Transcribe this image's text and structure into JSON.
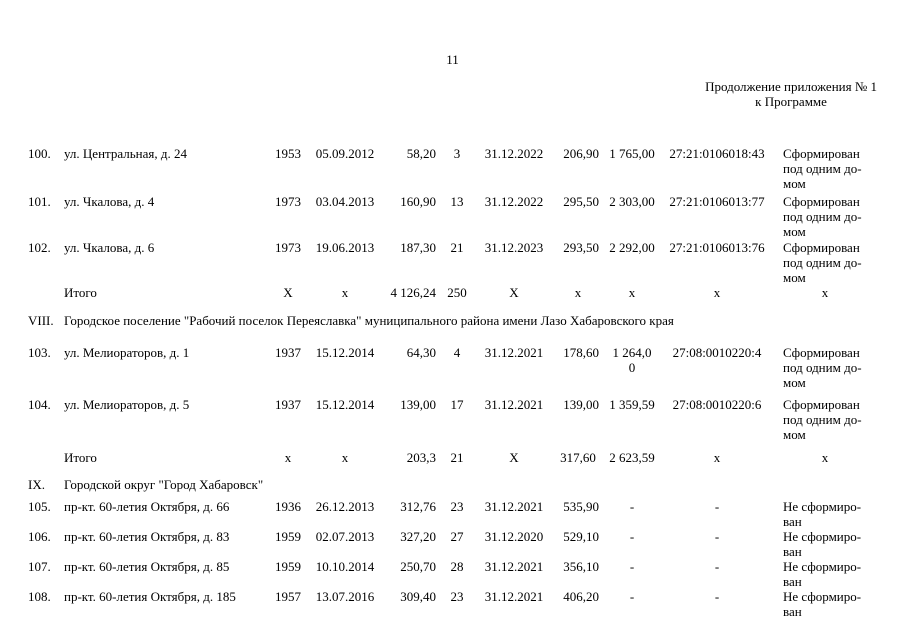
{
  "page": {
    "number": "11",
    "appendix_line1": "Продолжение приложения № 1",
    "appendix_line2": "к Программе"
  },
  "table": {
    "columns": [
      "num",
      "address",
      "year",
      "date",
      "area",
      "count",
      "plan_date",
      "val1",
      "val2",
      "cadastral",
      "status"
    ],
    "rows": [
      {
        "kind": "data",
        "num": "100.",
        "address": "ул. Центральная, д. 24",
        "year": "1953",
        "date": "05.09.2012",
        "area": "58,20",
        "count": "3",
        "plan_date": "31.12.2022",
        "val1": "206,90",
        "val2": "1 765,00",
        "cadastral": "27:21:0106018:43",
        "status": "Сформирован\nпод одним до-\nмом"
      },
      {
        "kind": "data",
        "num": "101.",
        "address": "ул. Чкалова, д. 4",
        "year": "1973",
        "date": "03.04.2013",
        "area": "160,90",
        "count": "13",
        "plan_date": "31.12.2022",
        "val1": "295,50",
        "val2": "2 303,00",
        "cadastral": "27:21:0106013:77",
        "status": "Сформирован\nпод одним до-\nмом"
      },
      {
        "kind": "data",
        "num": "102.",
        "address": "ул. Чкалова, д. 6",
        "year": "1973",
        "date": "19.06.2013",
        "area": "187,30",
        "count": "21",
        "plan_date": "31.12.2023",
        "val1": "293,50",
        "val2": "2 292,00",
        "cadastral": "27:21:0106013:76",
        "status": "Сформирован\nпод одним до-\nмом"
      },
      {
        "kind": "total",
        "num": "",
        "address": "Итого",
        "year": "X",
        "date": "x",
        "area": "4 126,24",
        "count": "250",
        "plan_date": "X",
        "val1": "x",
        "val2": "x",
        "cadastral": "x",
        "status": "x"
      },
      {
        "kind": "section",
        "num": "VIII.",
        "text": "Городское поселение \"Рабочий поселок Переяславка\" муниципального района имени Лазо Хабаровского края"
      },
      {
        "kind": "data",
        "num": "103.",
        "address": "ул. Мелиораторов, д. 1",
        "year": "1937",
        "date": "15.12.2014",
        "area": "64,30",
        "count": "4",
        "plan_date": "31.12.2021",
        "val1": "178,60",
        "val2": "1 264,0\n0",
        "cadastral": "27:08:0010220:4",
        "status": "Сформирован\nпод одним до-\nмом"
      },
      {
        "kind": "data",
        "num": "104.",
        "address": "ул. Мелиораторов, д. 5",
        "year": "1937",
        "date": "15.12.2014",
        "area": "139,00",
        "count": "17",
        "plan_date": "31.12.2021",
        "val1": "139,00",
        "val2": "1 359,59",
        "cadastral": "27:08:0010220:6",
        "status": "Сформирован\nпод одним до-\nмом"
      },
      {
        "kind": "total",
        "num": "",
        "address": "Итого",
        "year": "x",
        "date": "x",
        "area": "203,3",
        "count": "21",
        "plan_date": "X",
        "val1": "317,60",
        "val2": "2 623,59",
        "cadastral": "x",
        "status": "x"
      },
      {
        "kind": "section",
        "num": "IX.",
        "text": "Городской округ \"Город Хабаровск\""
      },
      {
        "kind": "data",
        "num": "105.",
        "address": "пр-кт. 60-летия Октября, д. 66",
        "year": "1936",
        "date": "26.12.2013",
        "area": "312,76",
        "count": "23",
        "plan_date": "31.12.2021",
        "val1": "535,90",
        "val2": "-",
        "cadastral": "-",
        "status": "Не сформиро-\nван"
      },
      {
        "kind": "data",
        "num": "106.",
        "address": "пр-кт. 60-летия Октября, д. 83",
        "year": "1959",
        "date": "02.07.2013",
        "area": "327,20",
        "count": "27",
        "plan_date": "31.12.2020",
        "val1": "529,10",
        "val2": "-",
        "cadastral": "-",
        "status": "Не сформиро-\nван"
      },
      {
        "kind": "data",
        "num": "107.",
        "address": "пр-кт. 60-летия Октября, д. 85",
        "year": "1959",
        "date": "10.10.2014",
        "area": "250,70",
        "count": "28",
        "plan_date": "31.12.2021",
        "val1": "356,10",
        "val2": "-",
        "cadastral": "-",
        "status": "Не сформиро-\nван"
      },
      {
        "kind": "data",
        "num": "108.",
        "address": "пр-кт. 60-летия Октября, д. 185",
        "year": "1957",
        "date": "13.07.2016",
        "area": "309,40",
        "count": "23",
        "plan_date": "31.12.2021",
        "val1": "406,20",
        "val2": "-",
        "cadastral": "-",
        "status": "Не сформиро-\nван"
      }
    ]
  }
}
